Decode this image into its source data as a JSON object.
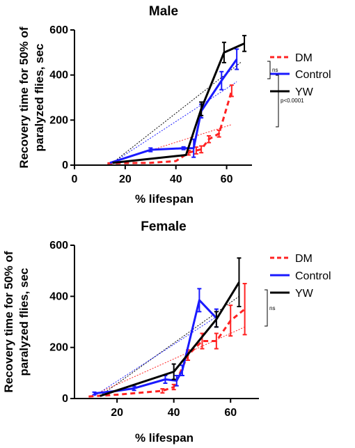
{
  "chart_data": [
    {
      "type": "line",
      "title": "Male",
      "xlabel": "% lifespan",
      "ylabel": "Recovery time for 50% of paralyzed flies, sec",
      "xlim": [
        0,
        70
      ],
      "ylim": [
        0,
        600
      ],
      "xticks": [
        "0",
        "20",
        "40",
        "60"
      ],
      "yticks": [
        "0",
        "200",
        "400",
        "600"
      ],
      "grid": false,
      "legend_position": "right",
      "series": [
        {
          "name": "DM",
          "color": "#ff2222",
          "dash": "dashed",
          "x": [
            13,
            20,
            30,
            40,
            45,
            48,
            50,
            53,
            57,
            62
          ],
          "y": [
            8,
            9,
            10,
            18,
            55,
            65,
            70,
            115,
            140,
            330
          ],
          "err": [
            0,
            0,
            0,
            0,
            10,
            15,
            15,
            15,
            15,
            25
          ]
        },
        {
          "name": "Control",
          "color": "#1a1aff",
          "dash": "solid",
          "x": [
            14,
            30,
            43,
            47,
            50,
            58,
            64
          ],
          "y": [
            10,
            68,
            75,
            75,
            240,
            375,
            470
          ],
          "err": [
            0,
            8,
            6,
            40,
            30,
            40,
            45
          ]
        },
        {
          "name": "YW",
          "color": "#000000",
          "dash": "solid",
          "x": [
            15,
            44,
            50,
            59,
            67
          ],
          "y": [
            10,
            45,
            250,
            500,
            540
          ],
          "err": [
            0,
            0,
            30,
            45,
            35
          ]
        }
      ],
      "trendlines": [
        {
          "series": "YW",
          "x": [
            15,
            66
          ],
          "y": [
            10,
            460
          ]
        },
        {
          "series": "Control",
          "x": [
            15,
            64
          ],
          "y": [
            10,
            370
          ]
        },
        {
          "series": "DM",
          "x": [
            13,
            62
          ],
          "y": [
            5,
            180
          ]
        }
      ],
      "annotations": [
        "ns",
        "p<0.0001"
      ]
    },
    {
      "type": "line",
      "title": "Female",
      "xlabel": "% lifespan",
      "ylabel": "Recovery time for 50% of paralyzed flies, sec",
      "xlim": [
        5,
        70
      ],
      "ylim": [
        0,
        600
      ],
      "xticks": [
        "20",
        "40",
        "60"
      ],
      "yticks": [
        "0",
        "200",
        "400",
        "600"
      ],
      "grid": false,
      "legend_position": "right",
      "series": [
        {
          "name": "DM",
          "color": "#ff2222",
          "dash": "dashed",
          "x": [
            10,
            20,
            36,
            40,
            45,
            50,
            55,
            60,
            65
          ],
          "y": [
            8,
            15,
            30,
            45,
            170,
            225,
            225,
            305,
            350
          ],
          "err": [
            0,
            0,
            8,
            10,
            20,
            30,
            30,
            60,
            100
          ]
        },
        {
          "name": "Control",
          "color": "#1a1aff",
          "dash": "solid",
          "x": [
            12,
            20,
            26,
            37,
            41,
            43,
            49,
            55
          ],
          "y": [
            20,
            30,
            40,
            75,
            70,
            110,
            385,
            315
          ],
          "err": [
            5,
            0,
            8,
            15,
            20,
            20,
            45,
            35
          ]
        },
        {
          "name": "YW",
          "color": "#000000",
          "dash": "solid",
          "x": [
            14,
            40,
            55,
            63
          ],
          "y": [
            10,
            105,
            310,
            455
          ],
          "err": [
            0,
            30,
            30,
            95
          ]
        }
      ],
      "trendlines": [
        {
          "series": "YW",
          "x": [
            14,
            63
          ],
          "y": [
            10,
            400
          ]
        },
        {
          "series": "Control",
          "x": [
            12,
            55
          ],
          "y": [
            10,
            320
          ]
        },
        {
          "series": "DM",
          "x": [
            10,
            65
          ],
          "y": [
            5,
            280
          ]
        }
      ],
      "annotations": [
        "ns"
      ]
    }
  ]
}
